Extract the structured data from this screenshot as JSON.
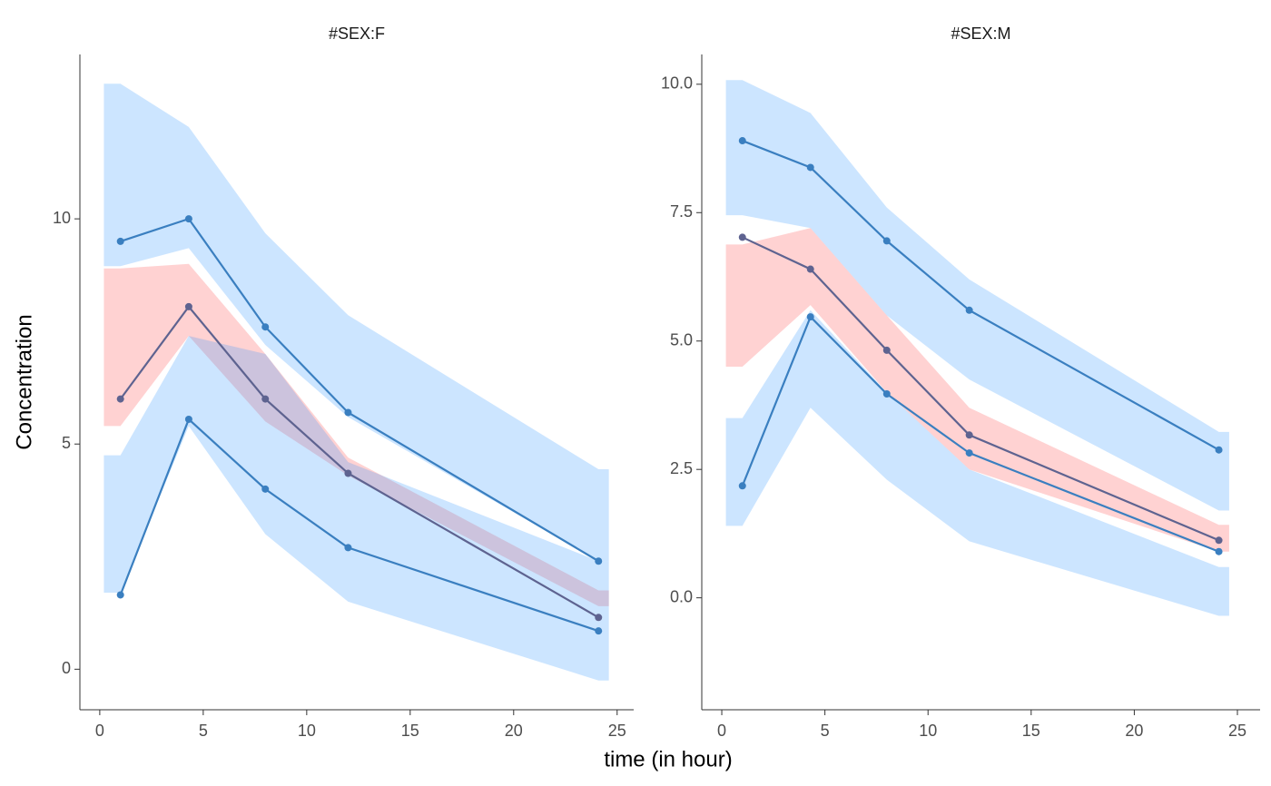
{
  "chart_data": {
    "type": "line",
    "xlabel": "time (in hour)",
    "ylabel": "Concentration",
    "panels": [
      {
        "title": "#SEX:F",
        "xlim": [
          -0.96,
          25.8
        ],
        "xticks": [
          0,
          5,
          10,
          15,
          20,
          25
        ],
        "ylim": [
          -0.9,
          13.65
        ],
        "yticks": [
          0,
          5,
          10
        ],
        "ribbon_x": [
          0.2,
          1,
          4.3,
          8,
          12,
          24.1,
          24.6
        ],
        "ribbons": [
          {
            "color": "#3399ff",
            "ymin": [
              8.95,
              8.95,
              9.35,
              7.2,
              5.6,
              2.4,
              2.4
            ],
            "ymax": [
              13.0,
              13.0,
              12.04,
              9.68,
              7.86,
              4.44,
              4.44
            ]
          },
          {
            "color": "#ff4d4d",
            "ymin": [
              5.4,
              5.4,
              7.4,
              5.5,
              4.3,
              1.4,
              1.4
            ],
            "ymax": [
              8.9,
              8.9,
              9.0,
              7.0,
              4.7,
              1.75,
              1.75
            ]
          },
          {
            "color": "#3399ff",
            "ymin": [
              1.7,
              1.7,
              5.4,
              3.0,
              1.5,
              -0.25,
              -0.25
            ],
            "ymax": [
              4.75,
              4.75,
              7.4,
              7.0,
              4.6,
              2.4,
              2.4
            ]
          }
        ],
        "x": [
          1,
          4.3,
          8,
          12,
          24.1
        ],
        "series": [
          {
            "color": "#3a7fc0",
            "values": [
              9.5,
              10.0,
              7.6,
              5.7,
              2.4
            ]
          },
          {
            "color": "#5e6390",
            "values": [
              6.0,
              8.05,
              6.0,
              4.35,
              1.15
            ]
          },
          {
            "color": "#3a7fc0",
            "values": [
              1.65,
              5.55,
              4.0,
              2.7,
              0.85
            ]
          }
        ]
      },
      {
        "title": "#SEX:M",
        "xlim": [
          -0.97,
          26.1
        ],
        "xticks": [
          0,
          5,
          10,
          15,
          20,
          25
        ],
        "ylim": [
          -2.18,
          10.58
        ],
        "yticks": [
          {
            "value": 0,
            "label": "0.0"
          },
          {
            "value": 2.5,
            "label": "2.5"
          },
          {
            "value": 5,
            "label": "5.0"
          },
          {
            "value": 7.5,
            "label": "7.5"
          },
          {
            "value": 10,
            "label": "10.0"
          }
        ],
        "ribbon_x": [
          0.2,
          1,
          4.3,
          8,
          12,
          24.1,
          24.6
        ],
        "ribbons": [
          {
            "color": "#3399ff",
            "ymin": [
              7.45,
              7.45,
              7.2,
              5.5,
              4.25,
              1.7,
              1.7
            ],
            "ymax": [
              10.08,
              10.08,
              9.44,
              7.6,
              6.2,
              3.23,
              3.23
            ]
          },
          {
            "color": "#ff4d4d",
            "ymin": [
              4.5,
              4.5,
              5.7,
              4.0,
              2.5,
              0.9,
              0.9
            ],
            "ymax": [
              6.88,
              6.88,
              7.2,
              5.5,
              3.7,
              1.42,
              1.42
            ]
          },
          {
            "color": "#3399ff",
            "ymin": [
              1.4,
              1.4,
              3.7,
              2.3,
              1.1,
              -0.35,
              -0.35
            ],
            "ymax": [
              3.5,
              3.5,
              5.6,
              4.0,
              2.5,
              0.6,
              0.6
            ]
          }
        ],
        "x": [
          1,
          4.3,
          8,
          12,
          24.1
        ],
        "series": [
          {
            "color": "#3a7fc0",
            "values": [
              8.9,
              8.38,
              6.95,
              5.6,
              2.88
            ]
          },
          {
            "color": "#5e6390",
            "values": [
              7.02,
              6.4,
              4.82,
              3.17,
              1.12
            ]
          },
          {
            "color": "#3a7fc0",
            "values": [
              2.18,
              5.47,
              3.97,
              2.82,
              0.9
            ]
          }
        ]
      }
    ]
  }
}
